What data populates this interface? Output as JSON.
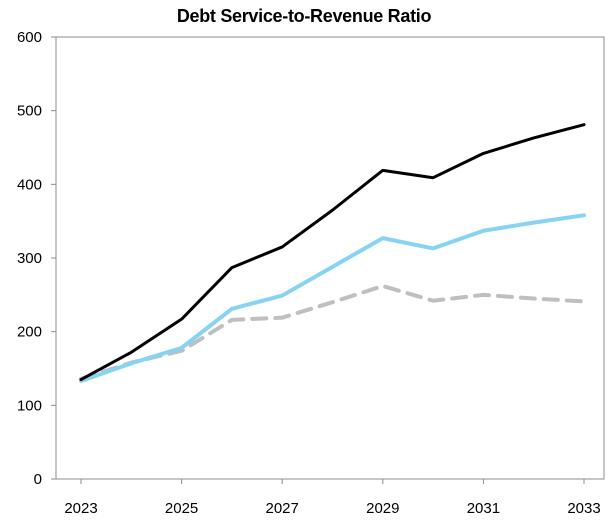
{
  "chart_data": {
    "type": "line",
    "title": "Debt Service-to-Revenue Ratio",
    "xlabel": "",
    "ylabel": "",
    "x": [
      2023,
      2024,
      2025,
      2026,
      2027,
      2028,
      2029,
      2030,
      2031,
      2032,
      2033
    ],
    "x_tick_labels": [
      "2023",
      "2025",
      "2027",
      "2029",
      "2031",
      "2033"
    ],
    "x_tick_values": [
      2023,
      2025,
      2027,
      2029,
      2031,
      2033
    ],
    "ylim": [
      0,
      600
    ],
    "y_ticks": [
      0,
      100,
      200,
      300,
      400,
      500,
      600
    ],
    "grid": false,
    "legend": "none",
    "series": [
      {
        "color": "#000000",
        "style": "solid",
        "values": [
          135,
          172,
          217,
          287,
          315,
          365,
          419,
          409,
          442,
          463,
          481
        ]
      },
      {
        "color": "#87d3f2",
        "style": "solid",
        "values": [
          133,
          157,
          178,
          231,
          249,
          288,
          327,
          313,
          337,
          348,
          358
        ]
      },
      {
        "color": "#bfbfbf",
        "style": "dashed",
        "values": [
          136,
          158,
          174,
          216,
          219,
          240,
          262,
          242,
          250,
          245,
          241
        ]
      }
    ]
  }
}
